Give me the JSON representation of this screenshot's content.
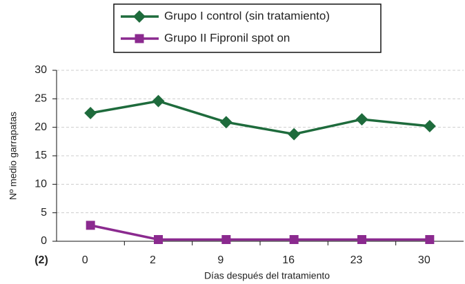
{
  "chart_data": {
    "type": "line",
    "categories": [
      "0",
      "2",
      "9",
      "16",
      "23",
      "30"
    ],
    "series": [
      {
        "name": "Grupo I control (sin tratamiento)",
        "color": "#1e6b3c",
        "marker": "diamond",
        "values": [
          22.5,
          24.6,
          20.9,
          18.8,
          21.4,
          20.2
        ]
      },
      {
        "name": "Grupo II Fipronil spot on",
        "color": "#8b2a8f",
        "marker": "square",
        "values": [
          2.8,
          0.3,
          0.3,
          0.3,
          0.3,
          0.3
        ]
      }
    ],
    "ylim": [
      0,
      30
    ],
    "yticks": [
      0,
      5,
      10,
      15,
      20,
      25,
      30
    ],
    "xlabel": "Días después del tratamiento",
    "ylabel": "Nº medio garrapatas",
    "annotation": "(2)",
    "grid": true,
    "legend": "top"
  }
}
